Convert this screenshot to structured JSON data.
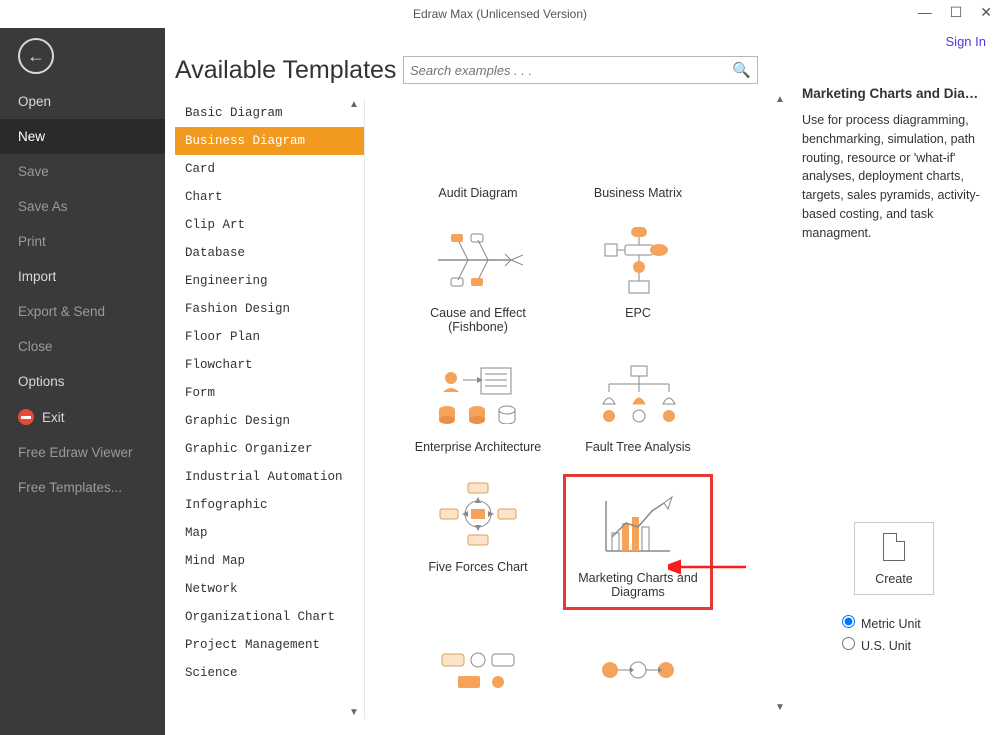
{
  "window": {
    "title": "Edraw Max (Unlicensed Version)",
    "signin": "Sign In"
  },
  "sidebar": {
    "items": [
      {
        "label": "Open",
        "kind": "normal"
      },
      {
        "label": "New",
        "kind": "active"
      },
      {
        "label": "Save",
        "kind": "dim"
      },
      {
        "label": "Save As",
        "kind": "dim"
      },
      {
        "label": "Print",
        "kind": "dim"
      },
      {
        "label": "Import",
        "kind": "normal"
      },
      {
        "label": "Export & Send",
        "kind": "dim"
      },
      {
        "label": "Close",
        "kind": "dim"
      },
      {
        "label": "Options",
        "kind": "normal"
      },
      {
        "label": "Exit",
        "kind": "exit"
      },
      {
        "label": "Free Edraw Viewer",
        "kind": "dim"
      },
      {
        "label": "Free Templates...",
        "kind": "dim"
      }
    ]
  },
  "templates": {
    "heading": "Available Templates",
    "search_placeholder": "Search examples . . .",
    "categories": [
      "Basic Diagram",
      "Business Diagram",
      "Card",
      "Chart",
      "Clip Art",
      "Database",
      "Engineering",
      "Fashion Design",
      "Floor Plan",
      "Flowchart",
      "Form",
      "Graphic Design",
      "Graphic Organizer",
      "Industrial Automation",
      "Infographic",
      "Map",
      "Mind Map",
      "Network",
      "Organizational Chart",
      "Project Management",
      "Science"
    ],
    "selected_category_index": 1,
    "gallery": [
      {
        "label": "Audit Diagram"
      },
      {
        "label": "Business Matrix"
      },
      {
        "label": "Cause and Effect (Fishbone)"
      },
      {
        "label": "EPC"
      },
      {
        "label": "Enterprise Architecture"
      },
      {
        "label": "Fault Tree Analysis"
      },
      {
        "label": "Five Forces Chart"
      },
      {
        "label": "Marketing Charts and Diagrams",
        "selected": true
      },
      {
        "label": ""
      },
      {
        "label": ""
      }
    ],
    "colors": {
      "accent": "#f29a1f",
      "selection_border": "#e53935",
      "icon_orange": "#f5a35b",
      "icon_gray": "#8a8a8a"
    }
  },
  "detail": {
    "title": "Marketing Charts and Diagra...",
    "description": "Use for process diagramming, benchmarking, simulation, path routing, resource or 'what-if' analyses, deployment charts, targets, sales pyramids, activity-based costing, and task managment.",
    "create_label": "Create",
    "units": {
      "metric": "Metric Unit",
      "us": "U.S. Unit",
      "selected": "metric"
    }
  }
}
